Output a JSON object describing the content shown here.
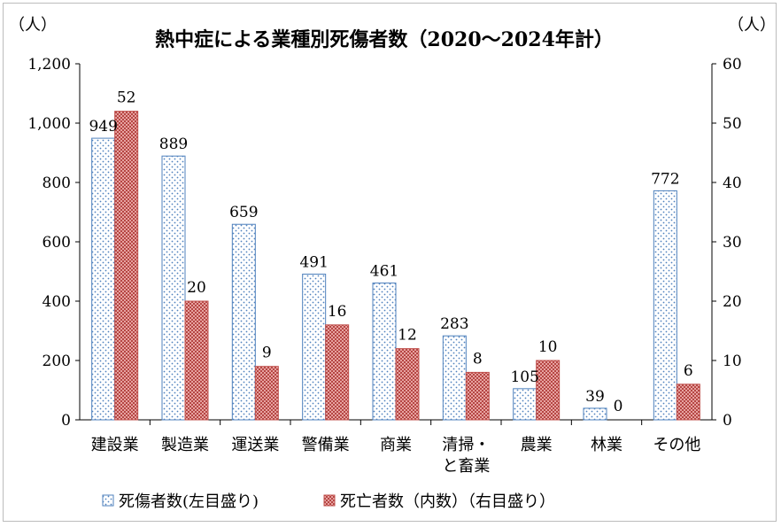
{
  "chart_data": {
    "type": "bar",
    "title": "熱中症による業種別死傷者数（2020～2024年計）",
    "ylabel_left": "（人）",
    "ylabel_right": "（人）",
    "ylim_left": [
      0,
      1200
    ],
    "yticks_left": [
      "0",
      "200",
      "400",
      "600",
      "800",
      "1,000",
      "1,200"
    ],
    "ylim_right": [
      0,
      60
    ],
    "yticks_right": [
      "0",
      "10",
      "20",
      "30",
      "40",
      "50",
      "60"
    ],
    "grid": false,
    "legend_position": "bottom",
    "categories": [
      [
        "建設業"
      ],
      [
        "製造業"
      ],
      [
        "運送業"
      ],
      [
        "警備業"
      ],
      [
        "商業"
      ],
      [
        "清掃・",
        "と畜業"
      ],
      [
        "農業"
      ],
      [
        "林業"
      ],
      [
        "その他"
      ]
    ],
    "series": [
      {
        "name": "死傷者数(左目盛り)",
        "axis": "left",
        "color": "#4f81bd",
        "values": [
          949,
          889,
          659,
          491,
          461,
          283,
          105,
          39,
          772
        ]
      },
      {
        "name": "死亡者数（内数）（右目盛り）",
        "axis": "right",
        "color": "#c0504d",
        "values": [
          52,
          20,
          9,
          16,
          12,
          8,
          10,
          0,
          6
        ]
      }
    ]
  }
}
